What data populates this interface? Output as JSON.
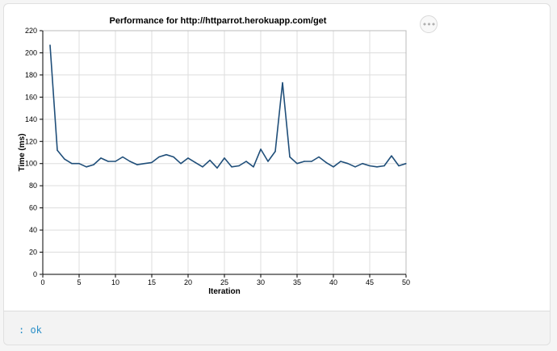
{
  "result": {
    "text": ": ok"
  },
  "menu": {
    "icon": "more-horizontal-icon",
    "glyph": "•••"
  },
  "colors": {
    "line": "#1f4e79",
    "grid": "#dddddd",
    "axis": "#000000",
    "link": "#2a8fc8"
  },
  "chart_data": {
    "type": "line",
    "title": "Performance for http://httparrot.herokuapp.com/get",
    "xlabel": "Iteration",
    "ylabel": "Time (ms)",
    "xlim": [
      0,
      50
    ],
    "ylim": [
      0,
      220
    ],
    "xticks": [
      0,
      5,
      10,
      15,
      20,
      25,
      30,
      35,
      40,
      45,
      50
    ],
    "yticks": [
      0,
      20,
      40,
      60,
      80,
      100,
      120,
      140,
      160,
      180,
      200,
      220
    ],
    "grid": true,
    "x": [
      1,
      2,
      3,
      4,
      5,
      6,
      7,
      8,
      9,
      10,
      11,
      12,
      13,
      14,
      15,
      16,
      17,
      18,
      19,
      20,
      21,
      22,
      23,
      24,
      25,
      26,
      27,
      28,
      29,
      30,
      31,
      32,
      33,
      34,
      35,
      36,
      37,
      38,
      39,
      40,
      41,
      42,
      43,
      44,
      45,
      46,
      47,
      48,
      49,
      50
    ],
    "series": [
      {
        "values": [
          207,
          112,
          104,
          100,
          100,
          97,
          99,
          105,
          102,
          102,
          106,
          102,
          99,
          100,
          101,
          106,
          108,
          106,
          100,
          105,
          101,
          97,
          103,
          96,
          105,
          97,
          98,
          102,
          97,
          113,
          102,
          111,
          173,
          106,
          100,
          102,
          102,
          106,
          101,
          97,
          102,
          100,
          97,
          100,
          98,
          97,
          98,
          107,
          98,
          100
        ]
      }
    ]
  }
}
